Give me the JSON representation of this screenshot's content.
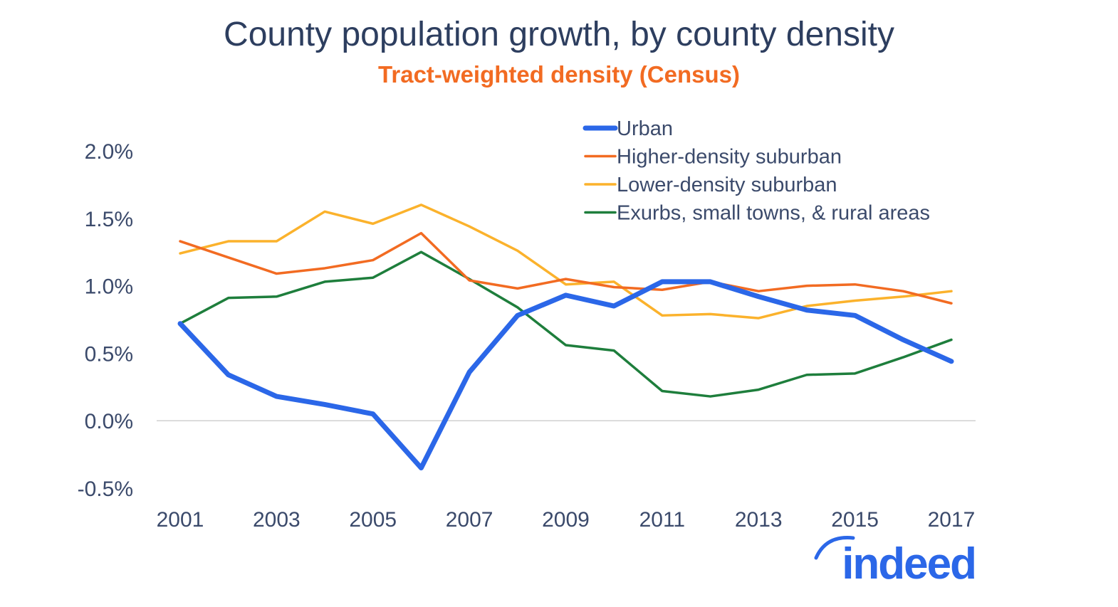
{
  "chart_data": {
    "type": "line",
    "title": "County population growth, by county density",
    "subtitle": "Tract-weighted density (Census)",
    "xlabel": "",
    "ylabel": "",
    "x": [
      2001,
      2002,
      2003,
      2004,
      2005,
      2006,
      2007,
      2008,
      2009,
      2010,
      2011,
      2012,
      2013,
      2014,
      2015,
      2016,
      2017
    ],
    "x_tick_labels": [
      "2001",
      "2003",
      "2005",
      "2007",
      "2009",
      "2011",
      "2013",
      "2015",
      "2017"
    ],
    "y_tick_labels": [
      "2.0%",
      "1.5%",
      "1.0%",
      "0.5%",
      "0.0%",
      "-0.5%"
    ],
    "y_ticks": [
      2.0,
      1.5,
      1.0,
      0.5,
      0.0,
      -0.5
    ],
    "ylim": [
      -0.5,
      2.0
    ],
    "y_unit": "%",
    "grid": false,
    "zero_line": true,
    "legend_position": "top-right",
    "series": [
      {
        "name": "Urban",
        "color": "#2b67e8",
        "values": [
          0.72,
          0.34,
          0.18,
          0.12,
          0.05,
          -0.35,
          0.36,
          0.78,
          0.93,
          0.85,
          1.03,
          1.03,
          0.92,
          0.82,
          0.78,
          0.6,
          0.44
        ]
      },
      {
        "name": "Higher-density suburban",
        "color": "#f26b22",
        "values": [
          1.33,
          1.21,
          1.09,
          1.13,
          1.19,
          1.39,
          1.04,
          0.98,
          1.05,
          0.99,
          0.97,
          1.03,
          0.96,
          1.0,
          1.01,
          0.96,
          0.87
        ]
      },
      {
        "name": "Lower-density suburban",
        "color": "#fbb22c",
        "values": [
          1.24,
          1.33,
          1.33,
          1.55,
          1.46,
          1.6,
          1.44,
          1.26,
          1.01,
          1.03,
          0.78,
          0.79,
          0.76,
          0.85,
          0.89,
          0.92,
          0.96
        ]
      },
      {
        "name": "Exurbs, small towns, & rural areas",
        "color": "#1e7e3c",
        "values": [
          0.72,
          0.91,
          0.92,
          1.03,
          1.06,
          1.25,
          1.05,
          0.84,
          0.56,
          0.52,
          0.22,
          0.18,
          0.23,
          0.34,
          0.35,
          0.47,
          0.6
        ]
      }
    ]
  },
  "colors": {
    "title": "#2d3e5f",
    "subtitle": "#f26b22",
    "axis_text": "#3b4a6b",
    "logo": "#2b67e8"
  },
  "logo": {
    "text": "indeed"
  }
}
